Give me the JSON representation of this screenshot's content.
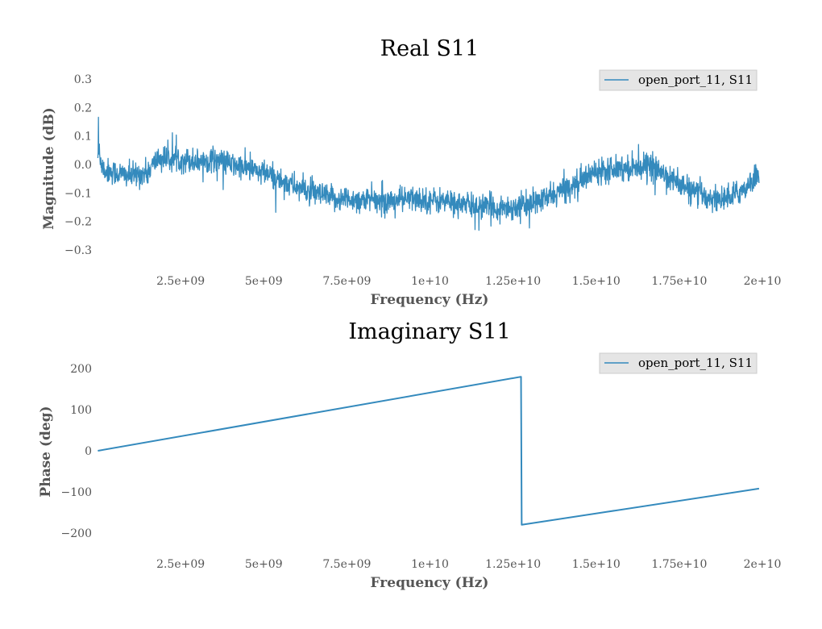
{
  "chart_data": [
    {
      "type": "line",
      "title": "Real S11",
      "xlabel": "Frequency (Hz)",
      "ylabel": "Magnitude (dB)",
      "xlim": [
        0,
        20000000000
      ],
      "ylim": [
        -0.3,
        0.3
      ],
      "x_ticks": [
        {
          "value": 2500000000,
          "label": "2.5e+09"
        },
        {
          "value": 5000000000,
          "label": "5e+09"
        },
        {
          "value": 7500000000,
          "label": "7.5e+09"
        },
        {
          "value": 10000000000,
          "label": "1e+10"
        },
        {
          "value": 12500000000,
          "label": "1.25e+10"
        },
        {
          "value": 15000000000,
          "label": "1.5e+10"
        },
        {
          "value": 17500000000,
          "label": "1.75e+10"
        },
        {
          "value": 20000000000,
          "label": "2e+10"
        }
      ],
      "y_ticks": [
        {
          "value": 0.3,
          "label": "0.3"
        },
        {
          "value": 0.2,
          "label": "0.2"
        },
        {
          "value": 0.1,
          "label": "0.1"
        },
        {
          "value": 0.0,
          "label": "0.0"
        },
        {
          "value": -0.1,
          "label": "−0.1"
        },
        {
          "value": -0.2,
          "label": "−0.2"
        },
        {
          "value": -0.3,
          "label": "−0.3"
        }
      ],
      "grid": false,
      "legend": "top-right",
      "series": [
        {
          "name": "open_port_11, S11",
          "color": "#348abd",
          "noise": 0.022,
          "x": [
            10000000,
            200000000,
            1000000000,
            1500000000,
            1800000000,
            2500000000,
            3000000000,
            3500000000,
            4000000000,
            5000000000,
            6000000000,
            7000000000,
            7500000000,
            8500000000,
            9500000000,
            10500000000,
            11500000000,
            12500000000,
            13000000000,
            13500000000,
            14000000000,
            14500000000,
            15000000000,
            15500000000,
            16000000000,
            16500000000,
            17000000000,
            17500000000,
            18000000000,
            18500000000,
            19000000000,
            19500000000,
            19900000000
          ],
          "y": [
            0.05,
            -0.02,
            -0.04,
            -0.03,
            0.02,
            0.02,
            0.01,
            0.02,
            0.0,
            -0.03,
            -0.08,
            -0.12,
            -0.12,
            -0.13,
            -0.12,
            -0.13,
            -0.15,
            -0.15,
            -0.14,
            -0.12,
            -0.09,
            -0.06,
            -0.02,
            -0.01,
            -0.01,
            0.0,
            -0.03,
            -0.07,
            -0.1,
            -0.12,
            -0.12,
            -0.08,
            -0.03
          ]
        }
      ]
    },
    {
      "type": "line",
      "title": "Imaginary S11",
      "xlabel": "Frequency (Hz)",
      "ylabel": "Phase (deg)",
      "xlim": [
        0,
        20000000000
      ],
      "ylim": [
        -200,
        200
      ],
      "x_ticks": [
        {
          "value": 2500000000,
          "label": "2.5e+09"
        },
        {
          "value": 5000000000,
          "label": "5e+09"
        },
        {
          "value": 7500000000,
          "label": "7.5e+09"
        },
        {
          "value": 10000000000,
          "label": "1e+10"
        },
        {
          "value": 12500000000,
          "label": "1.25e+10"
        },
        {
          "value": 15000000000,
          "label": "1.5e+10"
        },
        {
          "value": 17500000000,
          "label": "1.75e+10"
        },
        {
          "value": 20000000000,
          "label": "2e+10"
        }
      ],
      "y_ticks": [
        {
          "value": 200,
          "label": "200"
        },
        {
          "value": 100,
          "label": "100"
        },
        {
          "value": 0,
          "label": "0"
        },
        {
          "value": -100,
          "label": "−100"
        },
        {
          "value": -200,
          "label": "−200"
        }
      ],
      "grid": false,
      "legend": "top-right",
      "series": [
        {
          "name": "open_port_11, S11",
          "color": "#348abd",
          "noise": 0,
          "x": [
            10000000,
            12740000000,
            12760000000,
            19900000000
          ],
          "y": [
            0,
            180,
            -180,
            -92
          ]
        }
      ]
    }
  ]
}
